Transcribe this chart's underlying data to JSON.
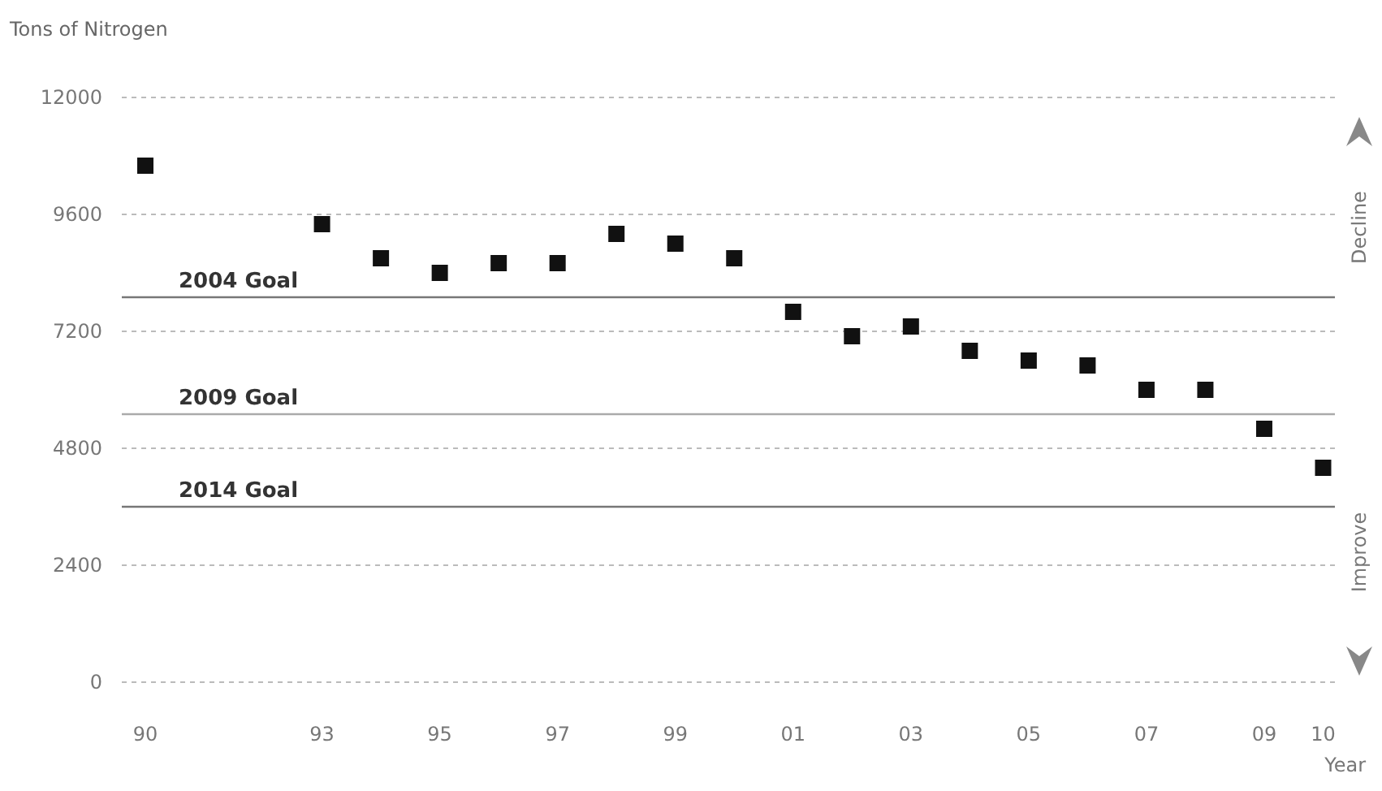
{
  "chart_data": {
    "type": "scatter",
    "ylabel": "Tons of Nitrogen",
    "xlabel": "Year",
    "x": [
      1990,
      1993,
      1994,
      1995,
      1996,
      1997,
      1998,
      1999,
      2000,
      2001,
      2002,
      2003,
      2004,
      2005,
      2006,
      2007,
      2008,
      2009,
      2010
    ],
    "series": [
      {
        "color": "#111111",
        "values": [
          10600,
          9400,
          8700,
          8400,
          8600,
          8600,
          9200,
          9000,
          8700,
          7600,
          7100,
          7300,
          6800,
          6600,
          6500,
          6000,
          6000,
          5200,
          4400
        ]
      }
    ],
    "marker": "square",
    "grid": "y",
    "xlim": [
      1989.6,
      2010.2
    ],
    "xticks": [
      {
        "value": 1990,
        "label": "90"
      },
      {
        "value": 1993,
        "label": "93"
      },
      {
        "value": 1995,
        "label": "95"
      },
      {
        "value": 1997,
        "label": "97"
      },
      {
        "value": 1999,
        "label": "99"
      },
      {
        "value": 2001,
        "label": "01"
      },
      {
        "value": 2003,
        "label": "03"
      },
      {
        "value": 2005,
        "label": "05"
      },
      {
        "value": 2007,
        "label": "07"
      },
      {
        "value": 2009,
        "label": "09"
      },
      {
        "value": 2010,
        "label": "10"
      }
    ],
    "ylim": [
      0,
      12000
    ],
    "yticks": [
      0,
      2400,
      4800,
      7200,
      9600,
      12000
    ],
    "ref_lines": [
      {
        "axis": "y",
        "value": 7900,
        "label": "2004 Goal",
        "color": "#777777"
      },
      {
        "axis": "y",
        "value": 5500,
        "label": "2009 Goal",
        "color": "#aaaaaa"
      },
      {
        "axis": "y",
        "value": 3600,
        "label": "2014 Goal",
        "color": "#777777"
      }
    ],
    "annotations": [
      "Decline",
      "Improve"
    ]
  }
}
